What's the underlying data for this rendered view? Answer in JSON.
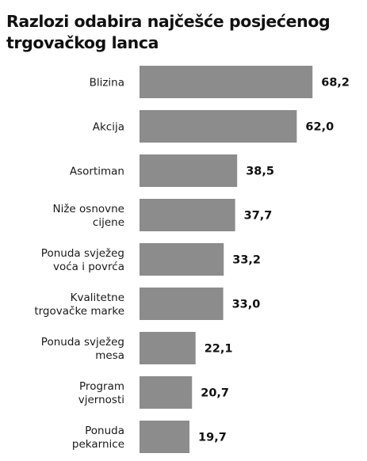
{
  "chart_data": {
    "type": "bar",
    "orientation": "horizontal",
    "title": "Razlozi odabira najčešće posjećenog trgovačkog lanca",
    "categories": [
      "Blizina",
      "Akcija",
      "Asortiman",
      "Niže osnovne cijene",
      "Ponuda svježeg voća i povrća",
      "Kvalitetne trgovačke marke",
      "Ponuda svježeg mesa",
      "Program vjernosti",
      "Ponuda pekarnice"
    ],
    "category_lines": [
      [
        "Blizina"
      ],
      [
        "Akcija"
      ],
      [
        "Asortiman"
      ],
      [
        "Niže osnovne",
        "cijene"
      ],
      [
        "Ponuda svježeg",
        "voća i povrća"
      ],
      [
        "Kvalitetne",
        "trgovačke marke"
      ],
      [
        "Ponuda svježeg",
        "mesa"
      ],
      [
        "Program",
        "vjernosti"
      ],
      [
        "Ponuda",
        "pekarnice"
      ]
    ],
    "values": [
      68.2,
      62.0,
      38.5,
      37.7,
      33.2,
      33.0,
      22.1,
      20.7,
      19.7
    ],
    "value_labels": [
      "68,2",
      "62,0",
      "38,5",
      "37,7",
      "33,2",
      "33,0",
      "22,1",
      "20,7",
      "19,7"
    ],
    "bar_color": "#8c8c8c",
    "grid": false,
    "legend": "none"
  }
}
